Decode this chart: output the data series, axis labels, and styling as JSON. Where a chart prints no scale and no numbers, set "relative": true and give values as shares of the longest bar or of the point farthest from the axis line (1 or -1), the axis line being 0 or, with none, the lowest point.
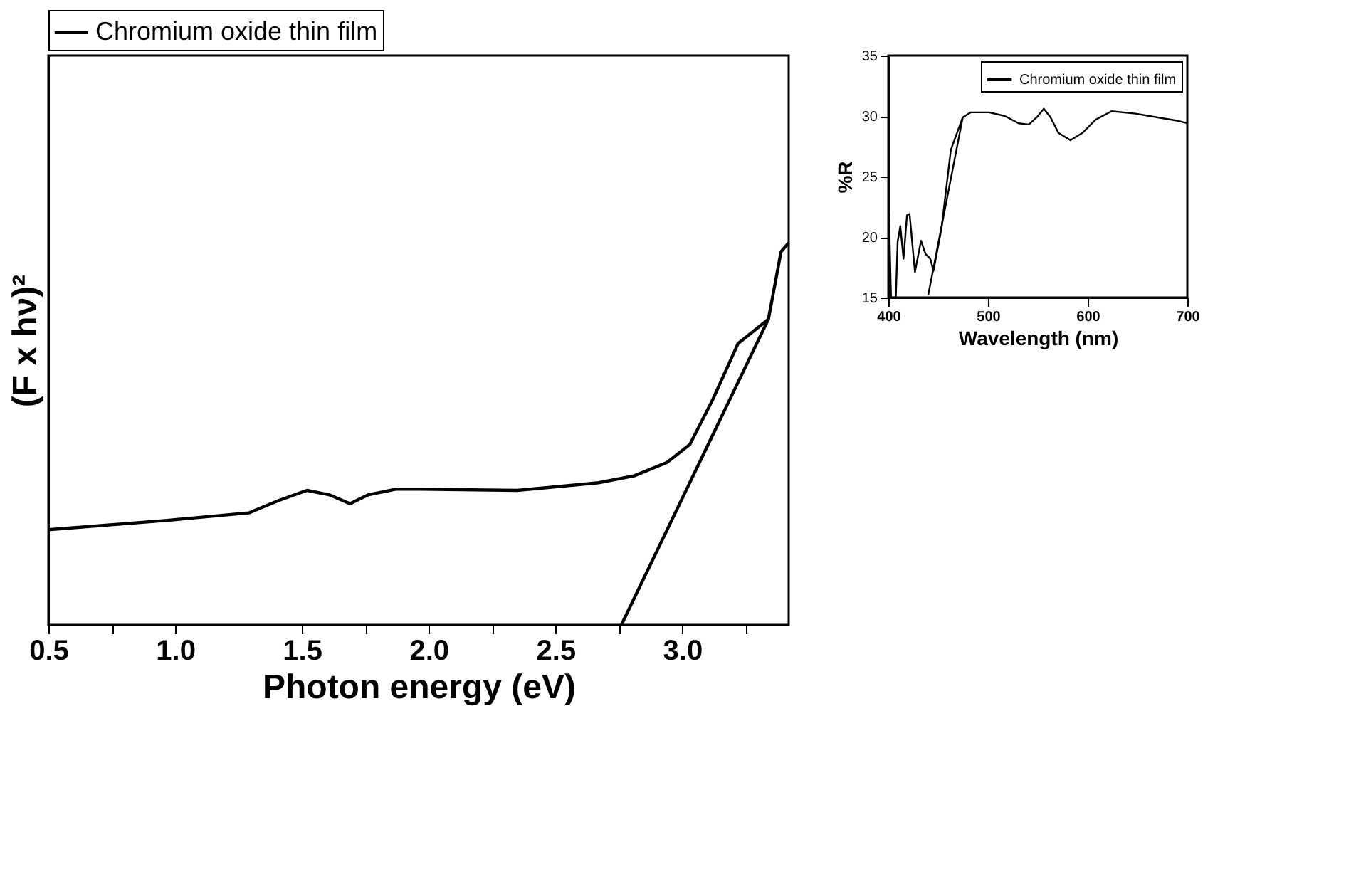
{
  "chart_data": [
    {
      "type": "line",
      "relative": true,
      "xlabel": "Photon energy (eV)",
      "ylabel": "(F x hν)²",
      "xlim": [
        0.5,
        3.42
      ],
      "xticks": [
        0.5,
        {
          "value": 0.75,
          "label": null
        },
        {
          "value": 1.0,
          "label": "1.0"
        },
        1.5,
        {
          "value": 1.75,
          "label": null
        },
        {
          "value": 2.0,
          "label": "2.0"
        },
        {
          "value": 2.25,
          "label": null
        },
        2.5,
        {
          "value": 2.75,
          "label": null
        },
        {
          "value": 3.0,
          "label": "3.0"
        },
        {
          "value": 3.25,
          "label": null
        }
      ],
      "tick_labels": "x",
      "legend": "top",
      "series": [
        {
          "name": "Chromium oxide thin film",
          "color": "#000000",
          "x": [
            0.5,
            0.96,
            1.29,
            1.41,
            1.52,
            1.61,
            1.69,
            1.76,
            1.87,
            1.97,
            2.35,
            2.67,
            2.81,
            2.94,
            3.03,
            3.12,
            3.22,
            3.34,
            3.39,
            3.42
          ],
          "values": [
            0.249,
            0.273,
            0.293,
            0.326,
            0.352,
            0.34,
            0.317,
            0.34,
            0.355,
            0.355,
            0.352,
            0.372,
            0.39,
            0.425,
            0.472,
            0.589,
            0.736,
            0.8,
            0.977,
            1.0
          ]
        },
        {
          "type": "line",
          "color": "#000000",
          "x": [
            2.76,
            3.34
          ],
          "values": [
            0,
            0.8
          ]
        }
      ]
    },
    {
      "type": "line",
      "xlabel": "Wavelength (nm)",
      "ylabel": "%R",
      "xlim": [
        400,
        700
      ],
      "ylim": [
        15,
        35
      ],
      "xticks": [
        400,
        500,
        600,
        700
      ],
      "yticks": [
        15,
        20,
        25,
        30,
        35
      ],
      "legend": "top right",
      "series": [
        {
          "name": "Chromium oxide thin film",
          "color": "#000000",
          "x": [
            400.5,
            402.7,
            407.5,
            409.3,
            412,
            415.2,
            418.7,
            421.3,
            426.7,
            432.8,
            437.3,
            442.1,
            445.3,
            453.3,
            462.7,
            474.7,
            482.7,
            501,
            517,
            530.7,
            541,
            549,
            556,
            562.7,
            570.7,
            582.7,
            594.7,
            608,
            624,
            648,
            669.3,
            690.7,
            700
          ],
          "values": [
            22.4,
            15,
            15,
            19.6,
            20.9,
            18.2,
            21.8,
            21.9,
            17.1,
            19.7,
            18.6,
            18.2,
            17.2,
            20.7,
            27.2,
            29.9,
            30.3,
            30.3,
            30,
            29.4,
            29.3,
            29.9,
            30.6,
            29.9,
            28.6,
            28,
            28.6,
            29.7,
            30.4,
            30.2,
            29.9,
            29.6,
            29.4
          ]
        },
        {
          "type": "line",
          "color": "#000000",
          "x": [
            440,
            474.7
          ],
          "values": [
            15.2,
            29.9
          ]
        }
      ]
    }
  ]
}
